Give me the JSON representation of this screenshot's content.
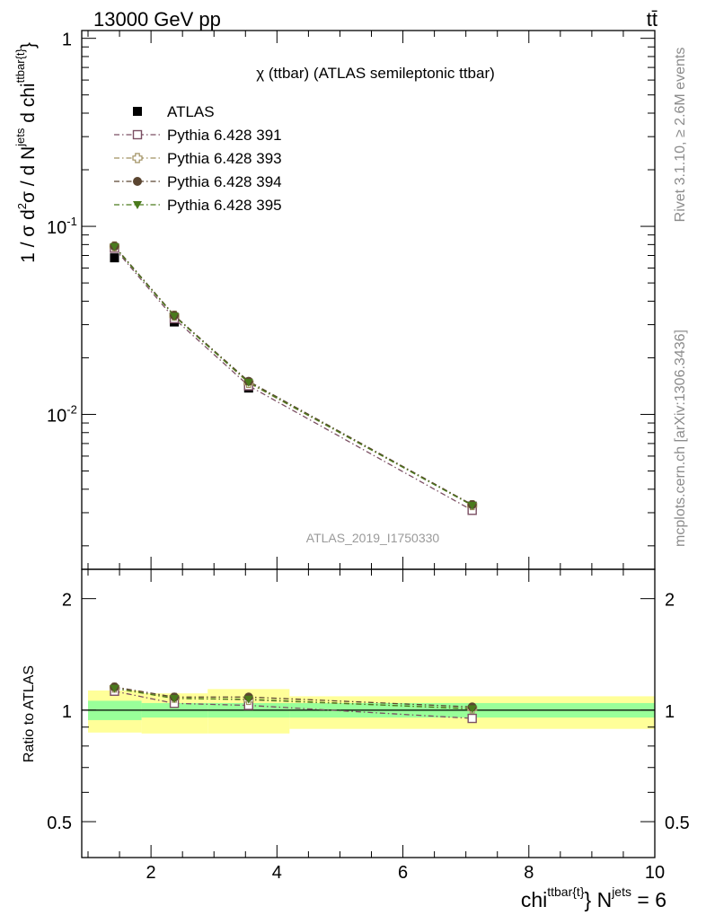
{
  "header": {
    "energy_label": "13000 GeV pp",
    "process_label": "tt̄"
  },
  "side_labels": {
    "rivet": "Rivet 3.1.10, ≥ 2.6M events",
    "mcplots": "mcplots.cern.ch [arXiv:1306.3436]"
  },
  "plot_title": "χ (ttbar) (ATLAS semileptonic ttbar)",
  "analysis_id": "ATLAS_2019_I1750330",
  "y_axis_label": "1 / σ d²σ / d N^jets d chi^ttbar{t}",
  "ratio_axis_label": "Ratio to ATLAS",
  "x_axis_label": "chi^ttbar{t} N^jets = 6",
  "legend": [
    "ATLAS",
    "Pythia 6.428 391",
    "Pythia 6.428 393",
    "Pythia 6.428 394",
    "Pythia 6.428 395"
  ],
  "colors": {
    "atlas": "#000000",
    "p391": "#7b4f63",
    "p393": "#a09060",
    "p394": "#5a4530",
    "p395": "#4a7a1c",
    "band_inner": "#99ff99",
    "band_outer": "#ffff99",
    "side_text": "#8c8c8c"
  },
  "chart_data": [
    {
      "type": "scatter",
      "panel": "main",
      "y_scale": "log",
      "xlim": [
        0.9,
        10.0
      ],
      "ylim": [
        0.0015,
        1.1
      ],
      "x": [
        1.42,
        2.37,
        3.55,
        7.1
      ],
      "x_bins": [
        [
          1.0,
          1.85
        ],
        [
          1.85,
          2.9
        ],
        [
          2.9,
          4.2
        ],
        [
          4.2,
          10.0
        ]
      ],
      "series": [
        {
          "name": "ATLAS",
          "marker": "square-filled",
          "values": [
            0.068,
            0.031,
            0.0138,
            0.00325
          ]
        },
        {
          "name": "Pythia 6.428 391",
          "marker": "square-open",
          "line": "dashdot",
          "values": [
            0.0765,
            0.0323,
            0.0142,
            0.00309
          ]
        },
        {
          "name": "Pythia 6.428 393",
          "marker": "cross-open",
          "line": "dashdot",
          "values": [
            0.0783,
            0.0335,
            0.0147,
            0.00329
          ]
        },
        {
          "name": "Pythia 6.428 394",
          "marker": "circle-filled",
          "line": "dashdot",
          "values": [
            0.0785,
            0.0336,
            0.015,
            0.00331
          ]
        },
        {
          "name": "Pythia 6.428 395",
          "marker": "triangle-down-filled",
          "line": "dashdot",
          "values": [
            0.0779,
            0.0333,
            0.0148,
            0.00328
          ]
        }
      ]
    },
    {
      "type": "scatter",
      "panel": "ratio",
      "ylim": [
        0.4,
        2.4
      ],
      "yticks": [
        "0.5",
        "1",
        "2"
      ],
      "xticks": [
        "2",
        "4",
        "6",
        "8",
        "10"
      ],
      "x": [
        1.42,
        2.37,
        3.55,
        7.1
      ],
      "bands": {
        "inner": [
          [
            0.94,
            1.06
          ],
          [
            0.955,
            1.045
          ],
          [
            0.955,
            1.045
          ],
          [
            0.955,
            1.045
          ]
        ],
        "outer": [
          [
            0.87,
            1.13
          ],
          [
            0.865,
            1.11
          ],
          [
            0.865,
            1.14
          ],
          [
            0.89,
            1.09
          ]
        ]
      },
      "series": [
        {
          "name": "Pythia 6.428 391",
          "values": [
            1.125,
            1.043,
            1.03,
            0.95
          ]
        },
        {
          "name": "Pythia 6.428 393",
          "values": [
            1.15,
            1.08,
            1.065,
            1.01
          ]
        },
        {
          "name": "Pythia 6.428 394",
          "values": [
            1.155,
            1.085,
            1.085,
            1.02
          ]
        },
        {
          "name": "Pythia 6.428 395",
          "values": [
            1.145,
            1.075,
            1.07,
            1.008
          ]
        }
      ]
    }
  ]
}
